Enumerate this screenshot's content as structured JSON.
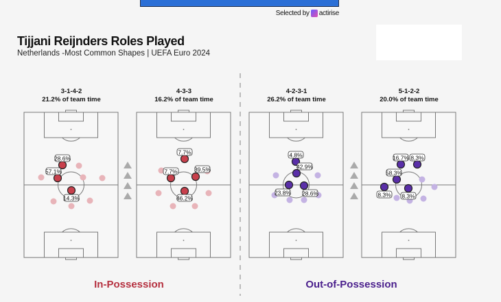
{
  "header": {
    "selected_by": "Selected by",
    "sponsor": "actirise",
    "title": "Tijjani Reijnders Roles Played",
    "subtitle": "Netherlands -Most Common Shapes | UEFA Euro 2024"
  },
  "colors": {
    "in_possession": "#c8404c",
    "in_possession_faded": "#e8b4b9",
    "out_of_possession": "#5a2fa8",
    "out_of_possession_faded": "#c4b3e3",
    "in_label": "#b5303f",
    "out_label": "#4a1f8c"
  },
  "panels": [
    {
      "shape": "3-1-4-2",
      "time": "21.2% of team time",
      "phase": "in",
      "roles": [
        "28.6%",
        "57.1%",
        "14.3%"
      ]
    },
    {
      "shape": "4-3-3",
      "time": "16.2% of team time",
      "phase": "in",
      "roles": [
        "7.7%",
        "7.7%",
        "39.5%",
        "46.2%"
      ]
    },
    {
      "shape": "4-2-3-1",
      "time": "26.2% of team time",
      "phase": "out",
      "roles": [
        "4.8%",
        "42.9%",
        "23.8%",
        "28.6%"
      ]
    },
    {
      "shape": "5-1-2-2",
      "time": "20.0% of team time",
      "phase": "out",
      "roles": [
        "16.7%",
        "8.3%",
        "58.3%",
        "8.3%",
        "8.3%"
      ]
    }
  ],
  "footer": {
    "in_possession": "In-Possession",
    "out_of_possession": "Out-of-Possession"
  }
}
